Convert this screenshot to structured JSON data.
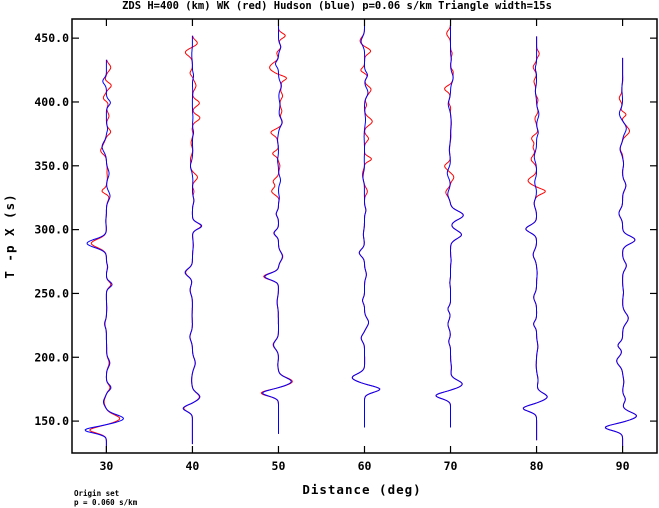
{
  "chart_data": {
    "type": "line",
    "title": "ZDS H=400 (km) WK (red) Hudson (blue) p=0.06 s/km Triangle width=15s",
    "xlabel": "Distance (deg)",
    "ylabel": "T -p X (s)",
    "xlim": [
      26,
      94
    ],
    "ylim": [
      125,
      465
    ],
    "x_ticks": [
      30,
      40,
      50,
      60,
      70,
      80,
      90
    ],
    "x_tick_labels": [
      "30",
      "40",
      "50",
      "60",
      "70",
      "80",
      "90"
    ],
    "y_ticks": [
      150,
      200,
      250,
      300,
      350,
      400,
      450
    ],
    "y_tick_labels": [
      "150.0",
      "200.0",
      "250.0",
      "300.0",
      "350.0",
      "400.0",
      "450.0"
    ],
    "series": [
      {
        "name": "WK",
        "color": "#ff0000"
      },
      {
        "name": "Hudson",
        "color": "#0000ff"
      }
    ],
    "traces": [
      {
        "distance": 30,
        "t_start": 125,
        "t_end": 433,
        "first_arrival": 143,
        "polarity": -1,
        "amp_red": 2.5,
        "amp_blue": 3.2
      },
      {
        "distance": 40,
        "t_start": 132,
        "t_end": 452,
        "first_arrival": 160,
        "polarity": -1,
        "amp_red": 1.3,
        "amp_blue": 1.4
      },
      {
        "distance": 50,
        "t_start": 140,
        "t_end": 462,
        "first_arrival": 172,
        "polarity": -1,
        "amp_red": 2.6,
        "amp_blue": 2.4
      },
      {
        "distance": 60,
        "t_start": 145,
        "t_end": 462,
        "first_arrival": 175,
        "polarity": 1,
        "amp_red": 2.3,
        "amp_blue": 2.3
      },
      {
        "distance": 70,
        "t_start": 145,
        "t_end": 462,
        "first_arrival": 170,
        "polarity": -1,
        "amp_red": 2.2,
        "amp_blue": 2.2
      },
      {
        "distance": 80,
        "t_start": 135,
        "t_end": 452,
        "first_arrival": 160,
        "polarity": -1,
        "amp_red": 2.0,
        "amp_blue": 2.0
      },
      {
        "distance": 90,
        "t_start": 130,
        "t_end": 435,
        "first_arrival": 145,
        "polarity": -1,
        "amp_red": 2.6,
        "amp_blue": 2.6
      }
    ],
    "grid": false,
    "legend": "none"
  },
  "footer": {
    "line1": "Origin set",
    "line2": "p = 0.060 s/km"
  }
}
